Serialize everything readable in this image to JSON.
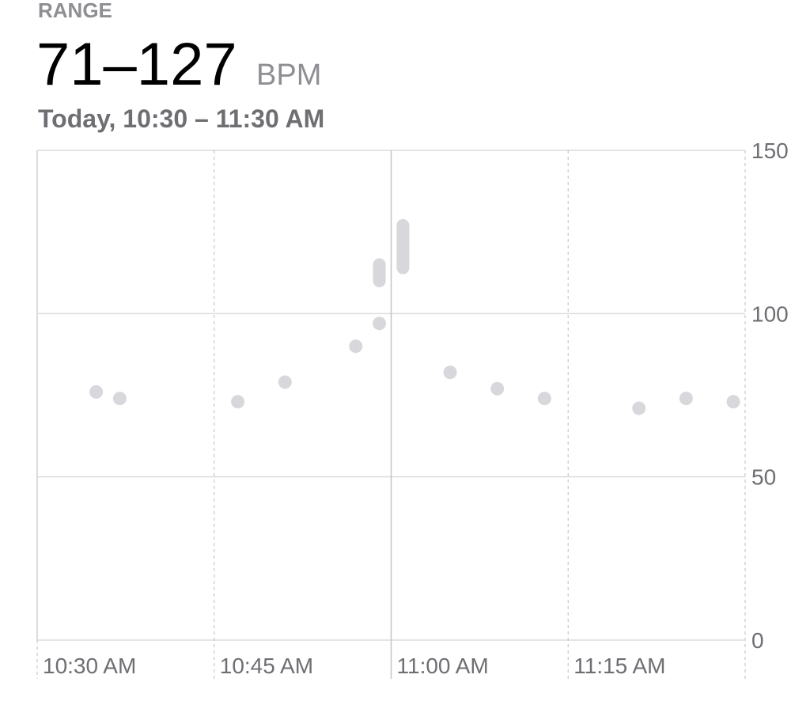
{
  "chart_data": {
    "type": "range",
    "label": "RANGE",
    "title": "71–127",
    "unit": "BPM",
    "subtitle": "Today, 10:30 – 11:30 AM",
    "xlim": [
      "10:30 AM",
      "11:30 AM"
    ],
    "xticks": [
      "10:30 AM",
      "10:45 AM",
      "11:00 AM",
      "11:15 AM"
    ],
    "ylim": [
      0,
      150
    ],
    "yticks": [
      0,
      50,
      100,
      150
    ],
    "grid": true,
    "color": "#d8d8dc",
    "points": [
      {
        "x": "10:35 AM",
        "values": [
          76
        ]
      },
      {
        "x": "10:37 AM",
        "values": [
          74
        ]
      },
      {
        "x": "10:47 AM",
        "values": [
          73
        ]
      },
      {
        "x": "10:51 AM",
        "values": [
          79
        ]
      },
      {
        "x": "10:57 AM",
        "values": [
          90
        ]
      },
      {
        "x": "10:59 AM",
        "values": [
          97
        ]
      },
      {
        "x": "10:59 AM",
        "values": [
          110,
          115
        ]
      },
      {
        "x": "11:01 AM",
        "values": [
          114,
          127
        ]
      },
      {
        "x": "11:05 AM",
        "values": [
          82
        ]
      },
      {
        "x": "11:09 AM",
        "values": [
          77
        ]
      },
      {
        "x": "11:13 AM",
        "values": [
          74
        ]
      },
      {
        "x": "11:21 AM",
        "values": [
          71
        ]
      },
      {
        "x": "11:25 AM",
        "values": [
          74
        ]
      },
      {
        "x": "11:29 AM",
        "values": [
          73
        ]
      }
    ]
  }
}
